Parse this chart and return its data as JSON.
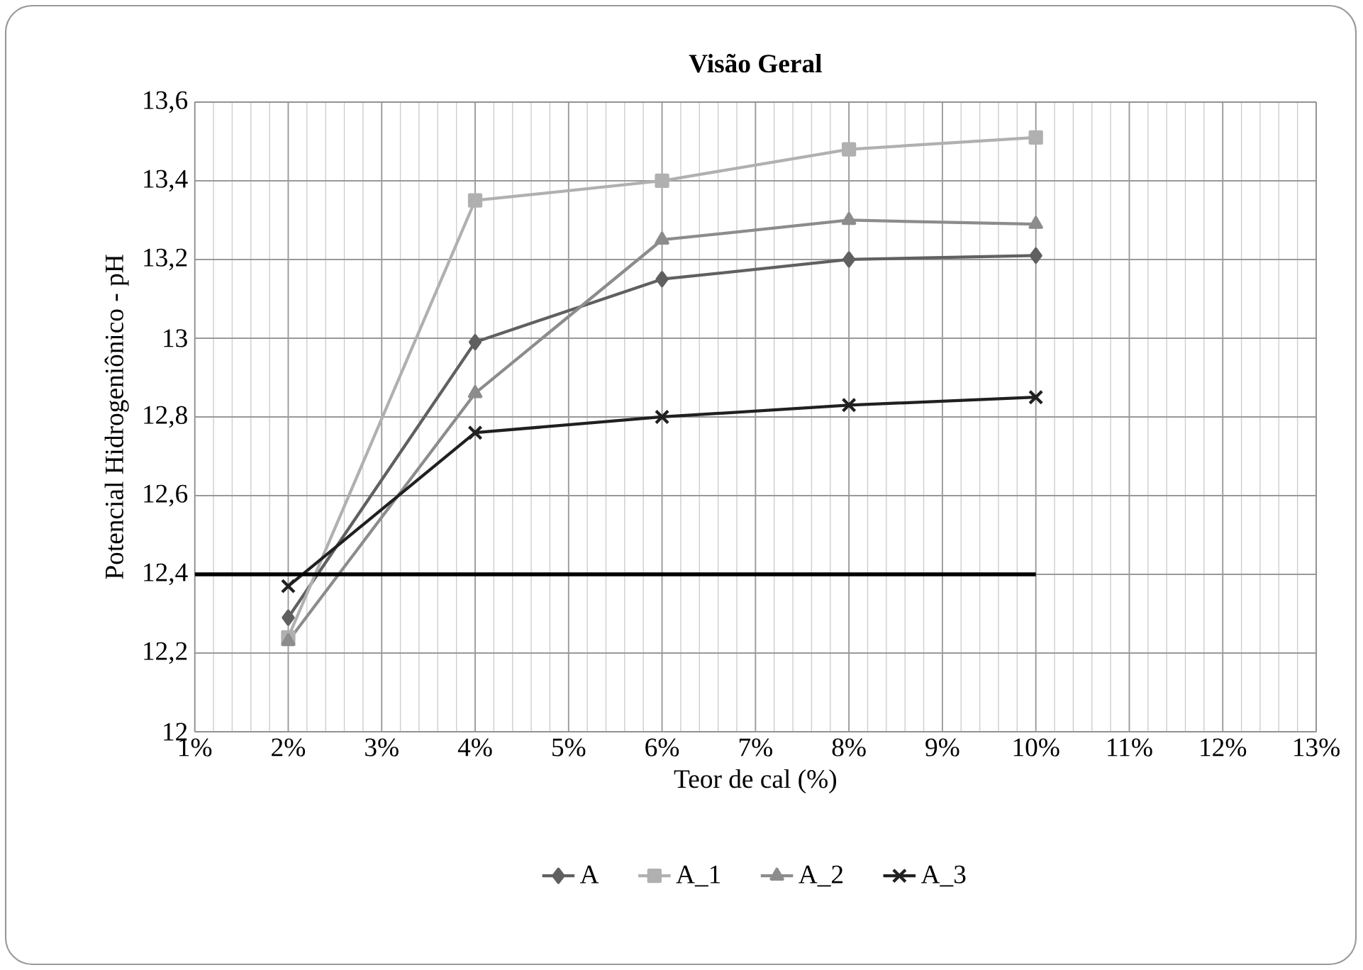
{
  "chart_data": {
    "type": "line",
    "title": "Visão Geral",
    "xlabel": "Teor de cal (%)",
    "ylabel": "Potencial Hidrogeniônico - pH",
    "x": [
      2,
      4,
      6,
      8,
      10
    ],
    "series": [
      {
        "name": "A",
        "color": "#606060",
        "marker": "diamond",
        "values": [
          12.29,
          12.99,
          13.15,
          13.2,
          13.21
        ]
      },
      {
        "name": "A_1",
        "color": "#b0b0b0",
        "marker": "square",
        "values": [
          12.24,
          13.35,
          13.4,
          13.48,
          13.51
        ]
      },
      {
        "name": "A_2",
        "color": "#8c8c8c",
        "marker": "triangle",
        "values": [
          12.23,
          12.86,
          13.25,
          13.3,
          13.29
        ]
      },
      {
        "name": "A_3",
        "color": "#202020",
        "marker": "cross",
        "values": [
          12.37,
          12.76,
          12.8,
          12.83,
          12.85
        ]
      },
      {
        "color": "#000000",
        "marker": "none",
        "x": [
          1,
          10
        ],
        "values": [
          12.4,
          12.4
        ]
      }
    ],
    "xlim": [
      1,
      13
    ],
    "xticks": [
      {
        "value": 1,
        "label": "1%"
      },
      {
        "value": 2,
        "label": "2%"
      },
      {
        "value": 3,
        "label": "3%"
      },
      {
        "value": 4,
        "label": "4%"
      },
      {
        "value": 5,
        "label": "5%"
      },
      {
        "value": 6,
        "label": "6%"
      },
      {
        "value": 7,
        "label": "7%"
      },
      {
        "value": 8,
        "label": "8%"
      },
      {
        "value": 9,
        "label": "9%"
      },
      {
        "value": 10,
        "label": "10%"
      },
      {
        "value": 11,
        "label": "11%"
      },
      {
        "value": 12,
        "label": "12%"
      },
      {
        "value": 13,
        "label": "13%"
      }
    ],
    "ylim": [
      12,
      13.6
    ],
    "yticks": [
      {
        "value": 12,
        "label": "12"
      },
      {
        "value": 12.2,
        "label": "12,2"
      },
      {
        "value": 12.4,
        "label": "12,4"
      },
      {
        "value": 12.6,
        "label": "12,6"
      },
      {
        "value": 12.8,
        "label": "12,8"
      },
      {
        "value": 13,
        "label": "13"
      },
      {
        "value": 13.2,
        "label": "13,2"
      },
      {
        "value": 13.4,
        "label": "13,4"
      },
      {
        "value": 13.6,
        "label": "13,6"
      }
    ],
    "grid": true,
    "legend": "bottom"
  }
}
